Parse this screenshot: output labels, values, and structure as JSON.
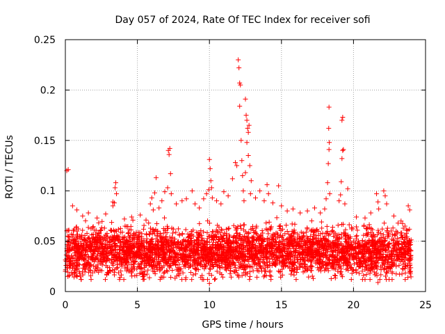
{
  "chart_data": {
    "type": "scatter",
    "title": "Day 057 of 2024, Rate Of TEC Index for receiver sofi",
    "xlabel": "GPS time / hours",
    "ylabel": "ROTI / TECUs",
    "xlim": [
      0,
      25
    ],
    "ylim": [
      0,
      0.25
    ],
    "x_ticks": [
      0,
      5,
      10,
      15,
      20,
      25
    ],
    "y_ticks": [
      0,
      0.05,
      0.1,
      0.15,
      0.2,
      0.25
    ],
    "x_tick_labels": [
      "0",
      "5",
      "10",
      "15",
      "20",
      "25"
    ],
    "y_tick_labels": [
      "0",
      "0.05",
      "0.1",
      "0.15",
      "0.2",
      "0.25"
    ],
    "grid": true,
    "marker": "plus",
    "color": "#ff0000",
    "background_band": {
      "x_start": 0,
      "x_end": 24,
      "y_center": 0.04,
      "y_spread": 0.025,
      "density_per_hour": 160
    },
    "series": [
      {
        "name": "ROTI",
        "points": [
          [
            0.1,
            0.12
          ],
          [
            0.2,
            0.121
          ],
          [
            0.15,
            0.055
          ],
          [
            0.5,
            0.085
          ],
          [
            0.8,
            0.081
          ],
          [
            1.2,
            0.075
          ],
          [
            1.6,
            0.078
          ],
          [
            2.2,
            0.073
          ],
          [
            2.8,
            0.077
          ],
          [
            3.3,
            0.089
          ],
          [
            3.4,
            0.088
          ],
          [
            3.5,
            0.108
          ],
          [
            3.45,
            0.103
          ],
          [
            3.55,
            0.097
          ],
          [
            3.3,
            0.085
          ],
          [
            4.1,
            0.072
          ],
          [
            4.6,
            0.074
          ],
          [
            5.2,
            0.076
          ],
          [
            5.6,
            0.071
          ],
          [
            5.9,
            0.087
          ],
          [
            6.0,
            0.093
          ],
          [
            6.1,
            0.081
          ],
          [
            6.2,
            0.098
          ],
          [
            6.3,
            0.113
          ],
          [
            6.5,
            0.083
          ],
          [
            6.7,
            0.09
          ],
          [
            6.9,
            0.099
          ],
          [
            7.15,
            0.14
          ],
          [
            7.2,
            0.136
          ],
          [
            7.25,
            0.142
          ],
          [
            7.3,
            0.117
          ],
          [
            7.1,
            0.103
          ],
          [
            7.35,
            0.097
          ],
          [
            7.7,
            0.087
          ],
          [
            8.1,
            0.09
          ],
          [
            8.4,
            0.092
          ],
          [
            8.8,
            0.1
          ],
          [
            9.0,
            0.087
          ],
          [
            9.3,
            0.083
          ],
          [
            9.6,
            0.092
          ],
          [
            9.8,
            0.097
          ],
          [
            10.0,
            0.131
          ],
          [
            10.05,
            0.122
          ],
          [
            10.1,
            0.11
          ],
          [
            9.95,
            0.101
          ],
          [
            10.15,
            0.103
          ],
          [
            10.2,
            0.093
          ],
          [
            10.5,
            0.09
          ],
          [
            10.8,
            0.087
          ],
          [
            11.0,
            0.099
          ],
          [
            11.3,
            0.095
          ],
          [
            11.6,
            0.112
          ],
          [
            11.8,
            0.128
          ],
          [
            11.9,
            0.125
          ],
          [
            12.0,
            0.23
          ],
          [
            12.05,
            0.222
          ],
          [
            12.1,
            0.207
          ],
          [
            12.15,
            0.205
          ],
          [
            12.1,
            0.184
          ],
          [
            12.2,
            0.15
          ],
          [
            12.25,
            0.13
          ],
          [
            12.3,
            0.115
          ],
          [
            12.35,
            0.1
          ],
          [
            12.4,
            0.09
          ],
          [
            12.5,
            0.191
          ],
          [
            12.55,
            0.175
          ],
          [
            12.6,
            0.17
          ],
          [
            12.65,
            0.162
          ],
          [
            12.7,
            0.158
          ],
          [
            12.75,
            0.165
          ],
          [
            12.6,
            0.148
          ],
          [
            12.7,
            0.135
          ],
          [
            12.8,
            0.125
          ],
          [
            12.5,
            0.118
          ],
          [
            12.9,
            0.11
          ],
          [
            12.85,
            0.097
          ],
          [
            13.2,
            0.093
          ],
          [
            13.5,
            0.1
          ],
          [
            13.8,
            0.09
          ],
          [
            14.0,
            0.106
          ],
          [
            14.1,
            0.097
          ],
          [
            14.4,
            0.088
          ],
          [
            14.8,
            0.105
          ],
          [
            15.0,
            0.085
          ],
          [
            15.4,
            0.08
          ],
          [
            15.8,
            0.082
          ],
          [
            16.3,
            0.078
          ],
          [
            16.8,
            0.08
          ],
          [
            17.3,
            0.083
          ],
          [
            17.7,
            0.078
          ],
          [
            18.0,
            0.082
          ],
          [
            18.1,
            0.092
          ],
          [
            18.2,
            0.108
          ],
          [
            18.25,
            0.127
          ],
          [
            18.3,
            0.141
          ],
          [
            18.32,
            0.148
          ],
          [
            18.28,
            0.162
          ],
          [
            18.3,
            0.183
          ],
          [
            18.35,
            0.097
          ],
          [
            19.0,
            0.09
          ],
          [
            19.1,
            0.096
          ],
          [
            19.15,
            0.109
          ],
          [
            19.2,
            0.132
          ],
          [
            19.25,
            0.14
          ],
          [
            19.3,
            0.141
          ],
          [
            19.2,
            0.17
          ],
          [
            19.25,
            0.173
          ],
          [
            19.6,
            0.102
          ],
          [
            19.4,
            0.087
          ],
          [
            20.2,
            0.074
          ],
          [
            20.8,
            0.073
          ],
          [
            21.2,
            0.078
          ],
          [
            21.6,
            0.097
          ],
          [
            21.7,
            0.089
          ],
          [
            21.75,
            0.082
          ],
          [
            22.1,
            0.1
          ],
          [
            22.2,
            0.095
          ],
          [
            22.3,
            0.087
          ],
          [
            22.8,
            0.075
          ],
          [
            23.3,
            0.07
          ],
          [
            23.8,
            0.085
          ],
          [
            23.9,
            0.081
          ]
        ]
      }
    ],
    "low_outliers": [
      [
        1.0,
        0.018
      ],
      [
        3.8,
        0.014
      ],
      [
        5.4,
        0.012
      ],
      [
        10.0,
        0.008
      ],
      [
        14.2,
        0.016
      ],
      [
        20.8,
        0.012
      ],
      [
        21.7,
        0.009
      ],
      [
        0.0,
        0.02
      ]
    ]
  }
}
